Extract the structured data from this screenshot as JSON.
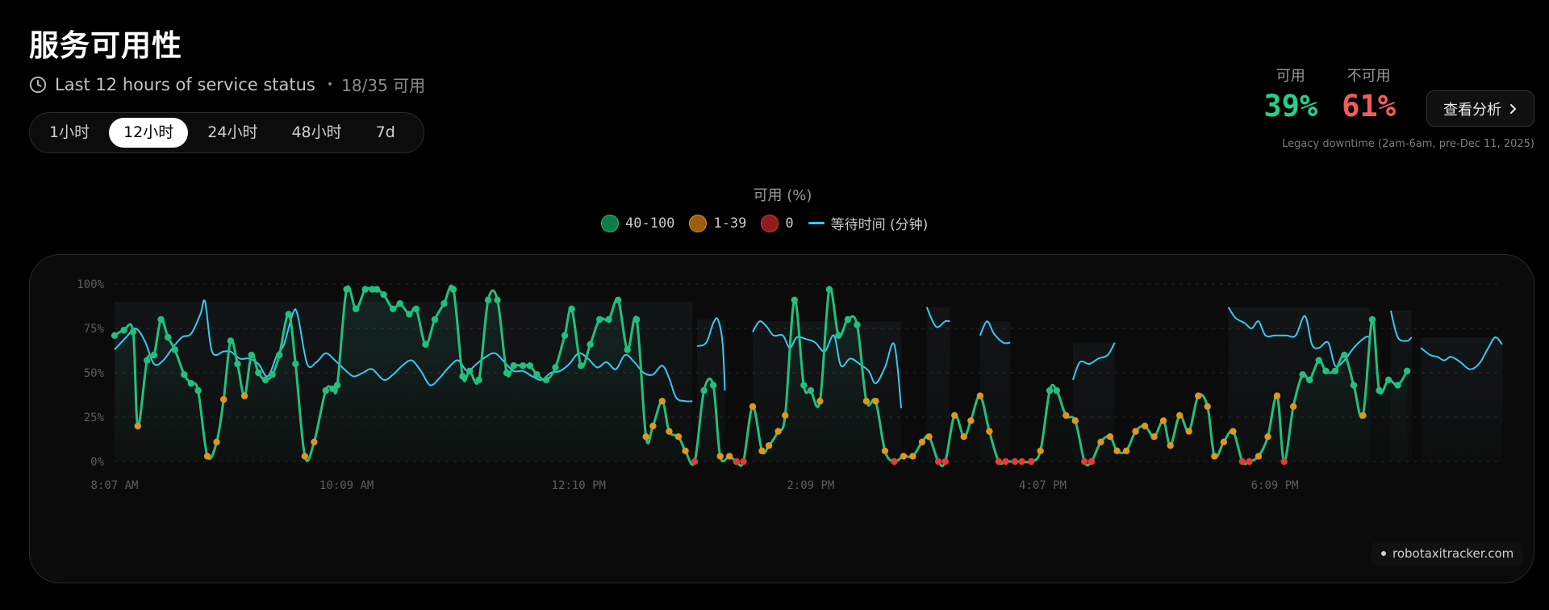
{
  "header": {
    "title": "服务可用性",
    "subtitle": "Last 12 hours of service status",
    "count": "18/35 可用",
    "tabs": [
      "1小时",
      "12小时",
      "24小时",
      "48小时",
      "7d"
    ],
    "active_tab": "12小时"
  },
  "stats": {
    "available_label": "可用",
    "available_value": "39%",
    "unavailable_label": "不可用",
    "unavailable_value": "61%",
    "analyze_label": "查看分析",
    "legacy_note": "Legacy downtime (2am-6am, pre-Dec 11, 2025)"
  },
  "watermark": "robotaxitracker.com",
  "colors": {
    "green": "#22c07e",
    "orange": "#e0961d",
    "red": "#e23b3b",
    "wait_line": "#3cc8f0",
    "available_text": "#22d18b",
    "unavailable_text": "#f25c5c"
  },
  "chart_data": {
    "type": "line",
    "title": "可用 (%)",
    "legend": [
      {
        "label": "40-100",
        "color": "#0f7a4a"
      },
      {
        "label": "1-39",
        "color": "#9a5e0c"
      },
      {
        "label": "0",
        "color": "#8f1b1b"
      },
      {
        "label": "等待时间 (分钟)",
        "color": "#3cc8f0",
        "kind": "line"
      }
    ],
    "y_ticks": [
      "0%",
      "25%",
      "50%",
      "75%",
      "100%"
    ],
    "ylim": [
      0,
      100
    ],
    "x_ticks": [
      {
        "label": "8:07 AM",
        "pos": 0
      },
      {
        "label": "10:09 AM",
        "pos": 10
      },
      {
        "label": "12:10 PM",
        "pos": 20
      },
      {
        "label": "2:09 PM",
        "pos": 30
      },
      {
        "label": "4:07 PM",
        "pos": 40
      },
      {
        "label": "6:09 PM",
        "pos": 50
      }
    ],
    "x_range": [
      0,
      59.8
    ],
    "availability": [
      [
        0,
        71
      ],
      [
        0.4,
        74
      ],
      [
        0.8,
        73
      ],
      [
        1.0,
        20
      ],
      [
        1.4,
        57
      ],
      [
        1.7,
        60
      ],
      [
        2.0,
        80
      ],
      [
        2.3,
        70
      ],
      [
        2.6,
        63
      ],
      [
        3.0,
        49
      ],
      [
        3.3,
        44
      ],
      [
        3.6,
        40
      ],
      [
        4.0,
        3
      ],
      [
        4.4,
        11
      ],
      [
        4.7,
        35
      ],
      [
        5.0,
        68
      ],
      [
        5.3,
        55
      ],
      [
        5.6,
        37
      ],
      [
        5.9,
        60
      ],
      [
        6.2,
        50
      ],
      [
        6.5,
        46
      ],
      [
        6.8,
        49
      ],
      [
        7.1,
        60
      ],
      [
        7.5,
        83
      ],
      [
        7.8,
        55
      ],
      [
        8.2,
        3
      ],
      [
        8.6,
        11
      ],
      [
        9.1,
        40
      ],
      [
        9.4,
        41
      ],
      [
        9.6,
        43
      ],
      [
        10.0,
        97
      ],
      [
        10.4,
        86
      ],
      [
        10.8,
        97
      ],
      [
        11.1,
        97
      ],
      [
        11.3,
        97
      ],
      [
        11.6,
        94
      ],
      [
        12.0,
        86
      ],
      [
        12.3,
        89
      ],
      [
        12.7,
        83
      ],
      [
        13.0,
        86
      ],
      [
        13.4,
        66
      ],
      [
        13.8,
        80
      ],
      [
        14.2,
        89
      ],
      [
        14.6,
        97
      ],
      [
        15.0,
        48
      ],
      [
        15.3,
        51
      ],
      [
        15.7,
        46
      ],
      [
        16.1,
        91
      ],
      [
        16.5,
        91
      ],
      [
        16.9,
        50
      ],
      [
        17.2,
        54
      ],
      [
        17.6,
        54
      ],
      [
        17.9,
        54
      ],
      [
        18.2,
        49
      ],
      [
        18.6,
        46
      ],
      [
        19.0,
        53
      ],
      [
        19.4,
        71
      ],
      [
        19.7,
        86
      ],
      [
        20.1,
        54
      ],
      [
        20.5,
        66
      ],
      [
        20.9,
        80
      ],
      [
        21.3,
        80
      ],
      [
        21.7,
        91
      ],
      [
        22.1,
        63
      ],
      [
        22.5,
        80
      ],
      [
        22.9,
        14
      ],
      [
        23.2,
        20
      ],
      [
        23.6,
        34
      ],
      [
        23.9,
        17
      ],
      [
        24.3,
        14
      ],
      [
        24.6,
        6
      ],
      [
        25.0,
        0
      ],
      [
        25.4,
        40
      ],
      [
        25.8,
        43
      ],
      [
        26.1,
        3
      ],
      [
        26.5,
        3
      ],
      [
        26.8,
        0
      ],
      [
        27.1,
        0
      ],
      [
        27.5,
        31
      ],
      [
        27.9,
        6
      ],
      [
        28.2,
        9
      ],
      [
        28.6,
        17
      ],
      [
        28.9,
        26
      ],
      [
        29.3,
        91
      ],
      [
        29.7,
        43
      ],
      [
        30.0,
        40
      ],
      [
        30.4,
        34
      ],
      [
        30.8,
        97
      ],
      [
        31.2,
        71
      ],
      [
        31.6,
        80
      ],
      [
        32.0,
        77
      ],
      [
        32.4,
        34
      ],
      [
        32.8,
        34
      ],
      [
        33.2,
        6
      ],
      [
        33.6,
        0
      ],
      [
        34.0,
        3
      ],
      [
        34.4,
        3
      ],
      [
        34.8,
        11
      ],
      [
        35.1,
        14
      ],
      [
        35.5,
        0
      ],
      [
        35.8,
        0
      ],
      [
        36.2,
        26
      ],
      [
        36.6,
        14
      ],
      [
        36.9,
        23
      ],
      [
        37.3,
        37
      ],
      [
        37.7,
        17
      ],
      [
        38.1,
        0
      ],
      [
        38.4,
        0
      ],
      [
        38.8,
        0
      ],
      [
        39.1,
        0
      ],
      [
        39.5,
        0
      ],
      [
        39.9,
        6
      ],
      [
        40.3,
        40
      ],
      [
        40.6,
        40
      ],
      [
        41.0,
        26
      ],
      [
        41.4,
        23
      ],
      [
        41.8,
        0
      ],
      [
        42.1,
        0
      ],
      [
        42.5,
        11
      ],
      [
        42.9,
        14
      ],
      [
        43.2,
        6
      ],
      [
        43.6,
        6
      ],
      [
        44.0,
        17
      ],
      [
        44.4,
        20
      ],
      [
        44.8,
        14
      ],
      [
        45.2,
        23
      ],
      [
        45.5,
        9
      ],
      [
        45.9,
        26
      ],
      [
        46.3,
        17
      ],
      [
        46.7,
        37
      ],
      [
        47.1,
        31
      ],
      [
        47.4,
        3
      ],
      [
        47.8,
        11
      ],
      [
        48.2,
        17
      ],
      [
        48.6,
        0
      ],
      [
        48.9,
        0
      ],
      [
        49.3,
        3
      ],
      [
        49.7,
        14
      ],
      [
        50.1,
        37
      ],
      [
        50.4,
        0
      ],
      [
        50.8,
        31
      ],
      [
        51.2,
        49
      ],
      [
        51.5,
        46
      ],
      [
        51.9,
        57
      ],
      [
        52.2,
        51
      ],
      [
        52.6,
        51
      ],
      [
        53.0,
        60
      ],
      [
        53.4,
        43
      ],
      [
        53.8,
        26
      ],
      [
        54.2,
        80
      ],
      [
        54.5,
        40
      ],
      [
        54.9,
        46
      ],
      [
        55.3,
        43
      ],
      [
        55.7,
        51
      ]
    ],
    "wait_time_segments": [
      [
        [
          0,
          63
        ],
        [
          0.5,
          70
        ],
        [
          0.9,
          75
        ],
        [
          1.3,
          68
        ],
        [
          1.7,
          55
        ],
        [
          2.1,
          57
        ],
        [
          2.5,
          64
        ],
        [
          2.9,
          70
        ],
        [
          3.3,
          72
        ],
        [
          3.7,
          83
        ],
        [
          3.9,
          90
        ],
        [
          4.2,
          62
        ],
        [
          4.7,
          62
        ],
        [
          5.0,
          62
        ],
        [
          5.4,
          58
        ],
        [
          5.8,
          58
        ],
        [
          6.2,
          55
        ],
        [
          6.6,
          48
        ],
        [
          7.0,
          60
        ],
        [
          7.3,
          66
        ],
        [
          7.7,
          84
        ],
        [
          7.9,
          82
        ],
        [
          8.3,
          55
        ],
        [
          8.7,
          56
        ],
        [
          9.1,
          61
        ],
        [
          9.5,
          57
        ],
        [
          9.9,
          52
        ],
        [
          10.3,
          48
        ],
        [
          10.7,
          50
        ],
        [
          11.1,
          52
        ],
        [
          11.6,
          46
        ],
        [
          12.0,
          49
        ],
        [
          12.4,
          54
        ],
        [
          12.8,
          57
        ],
        [
          13.2,
          51
        ],
        [
          13.6,
          43
        ],
        [
          14.0,
          47
        ],
        [
          14.4,
          53
        ],
        [
          14.8,
          57
        ],
        [
          15.2,
          51
        ],
        [
          15.6,
          55
        ],
        [
          16.0,
          59
        ],
        [
          16.4,
          61
        ],
        [
          16.8,
          56
        ],
        [
          17.2,
          51
        ],
        [
          17.6,
          51
        ],
        [
          18.0,
          48
        ],
        [
          18.4,
          46
        ],
        [
          18.8,
          50
        ],
        [
          19.2,
          51
        ],
        [
          19.6,
          55
        ],
        [
          20.0,
          61
        ],
        [
          20.4,
          58
        ],
        [
          20.8,
          53
        ],
        [
          21.2,
          56
        ],
        [
          21.6,
          52
        ],
        [
          22.0,
          60
        ],
        [
          22.4,
          56
        ],
        [
          22.8,
          50
        ],
        [
          23.2,
          49
        ],
        [
          23.6,
          54
        ],
        [
          23.9,
          47
        ],
        [
          24.2,
          36
        ],
        [
          24.6,
          34
        ],
        [
          24.9,
          34
        ]
      ],
      [
        [
          25.1,
          65
        ],
        [
          25.5,
          67
        ],
        [
          25.8,
          78
        ],
        [
          26.0,
          80
        ],
        [
          26.2,
          67
        ],
        [
          26.3,
          40
        ]
      ],
      [
        [
          27.5,
          73
        ],
        [
          27.8,
          79
        ],
        [
          28.1,
          76
        ],
        [
          28.4,
          71
        ],
        [
          28.8,
          71
        ],
        [
          29.1,
          64
        ],
        [
          29.4,
          70
        ],
        [
          29.8,
          69
        ],
        [
          30.2,
          67
        ],
        [
          30.6,
          62
        ],
        [
          31.0,
          71
        ],
        [
          31.3,
          54
        ],
        [
          31.7,
          58
        ],
        [
          32.1,
          55
        ],
        [
          32.5,
          51
        ],
        [
          32.8,
          44
        ],
        [
          33.2,
          53
        ],
        [
          33.6,
          66
        ],
        [
          33.9,
          30
        ]
      ],
      [
        [
          35.0,
          87
        ],
        [
          35.4,
          76
        ],
        [
          35.8,
          79
        ],
        [
          36.0,
          79
        ]
      ],
      [
        [
          37.3,
          71
        ],
        [
          37.6,
          79
        ],
        [
          37.9,
          72
        ],
        [
          38.3,
          67
        ],
        [
          38.6,
          67
        ]
      ],
      [
        [
          41.3,
          46
        ],
        [
          41.6,
          56
        ],
        [
          42.0,
          55
        ],
        [
          42.4,
          58
        ],
        [
          42.8,
          60
        ],
        [
          43.1,
          67
        ]
      ],
      [
        [
          48.0,
          87
        ],
        [
          48.3,
          81
        ],
        [
          48.7,
          78
        ],
        [
          49.0,
          75
        ],
        [
          49.3,
          79
        ],
        [
          49.6,
          71
        ],
        [
          50.0,
          71
        ],
        [
          50.5,
          71
        ],
        [
          50.9,
          71
        ],
        [
          51.3,
          82
        ],
        [
          51.6,
          66
        ],
        [
          51.9,
          64
        ],
        [
          52.3,
          67
        ],
        [
          52.6,
          54
        ],
        [
          53.0,
          57
        ],
        [
          53.4,
          64
        ],
        [
          53.9,
          70
        ],
        [
          54.1,
          70
        ]
      ],
      [
        [
          55.0,
          85
        ],
        [
          55.3,
          70
        ],
        [
          55.7,
          68
        ],
        [
          55.9,
          70
        ]
      ],
      [
        [
          56.3,
          64
        ],
        [
          56.7,
          60
        ],
        [
          57.0,
          59
        ],
        [
          57.3,
          57
        ],
        [
          57.6,
          59
        ],
        [
          58.0,
          56
        ],
        [
          58.4,
          52
        ],
        [
          58.8,
          55
        ],
        [
          59.2,
          64
        ],
        [
          59.5,
          70
        ],
        [
          59.8,
          66
        ]
      ]
    ]
  }
}
